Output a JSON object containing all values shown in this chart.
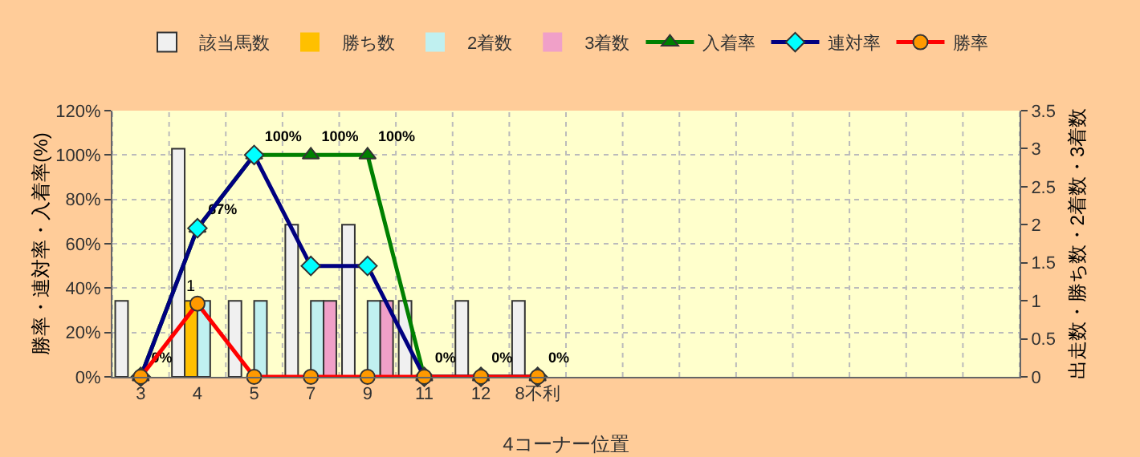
{
  "chart_data": {
    "type": "bar",
    "xlabel": "4コーナー位置",
    "ylabel": "勝率・連対率・入着率(%)",
    "y2label": "出走数・勝ち数・2着数・3着数",
    "categories": [
      "3",
      "4",
      "5",
      "7",
      "9",
      "11",
      "12",
      "8不利",
      null,
      null,
      null,
      null,
      null,
      null,
      null,
      null
    ],
    "series": [
      {
        "name": "該当馬数",
        "axis": "y2",
        "color": "#f0f0f0",
        "values": [
          1,
          3,
          1,
          2,
          2,
          1,
          1,
          1,
          null,
          null,
          null,
          null,
          null,
          null,
          null,
          null
        ]
      },
      {
        "name": "勝ち数",
        "axis": "y2",
        "color": "#ffc000",
        "values": [
          0,
          1,
          0,
          0,
          0,
          0,
          0,
          0,
          null,
          null,
          null,
          null,
          null,
          null,
          null,
          null
        ],
        "value_labels": [
          null,
          "1",
          null,
          null,
          null,
          null,
          null,
          null,
          null,
          null,
          null,
          null,
          null,
          null,
          null,
          null
        ]
      },
      {
        "name": "2着数",
        "axis": "y2",
        "color": "#c0f0f0",
        "values": [
          0,
          1,
          1,
          1,
          1,
          0,
          0,
          0,
          null,
          null,
          null,
          null,
          null,
          null,
          null,
          null
        ]
      },
      {
        "name": "3着数",
        "axis": "y2",
        "color": "#f0a0c8",
        "values": [
          0,
          0,
          0,
          1,
          1,
          0,
          0,
          0,
          null,
          null,
          null,
          null,
          null,
          null,
          null,
          null
        ]
      },
      {
        "name": "入着率",
        "type": "line",
        "marker": "triangle",
        "color": "#008000",
        "values": [
          0,
          67,
          100,
          100,
          100,
          0,
          0,
          0,
          null,
          null,
          null,
          null,
          null,
          null,
          null,
          null
        ],
        "value_labels": [
          "0%",
          "67%",
          "100%",
          "100%",
          "100%",
          "0%",
          "0%",
          "0%",
          null,
          null,
          null,
          null,
          null,
          null,
          null,
          null
        ]
      },
      {
        "name": "連対率",
        "type": "line",
        "marker": "diamond",
        "color": "#000080",
        "values": [
          0,
          67,
          100,
          50,
          50,
          0,
          0,
          0,
          null,
          null,
          null,
          null,
          null,
          null,
          null,
          null
        ]
      },
      {
        "name": "勝率",
        "type": "line",
        "marker": "circle",
        "color": "#ff0000",
        "values": [
          0,
          33,
          0,
          0,
          0,
          0,
          0,
          0,
          null,
          null,
          null,
          null,
          null,
          null,
          null,
          null
        ]
      }
    ],
    "ylim": [
      0,
      120
    ],
    "yticks": [
      {
        "value": 0,
        "label": "0%"
      },
      {
        "value": 20,
        "label": "20%"
      },
      {
        "value": 40,
        "label": "40%"
      },
      {
        "value": 60,
        "label": "60%"
      },
      {
        "value": 80,
        "label": "80%"
      },
      {
        "value": 100,
        "label": "100%"
      },
      {
        "value": 120,
        "label": "120%"
      }
    ],
    "y2lim": [
      0,
      3.5
    ],
    "y2ticks": [
      0,
      0.5,
      1,
      1.5,
      2,
      2.5,
      3,
      3.5
    ],
    "grid": true,
    "legend": "top"
  }
}
